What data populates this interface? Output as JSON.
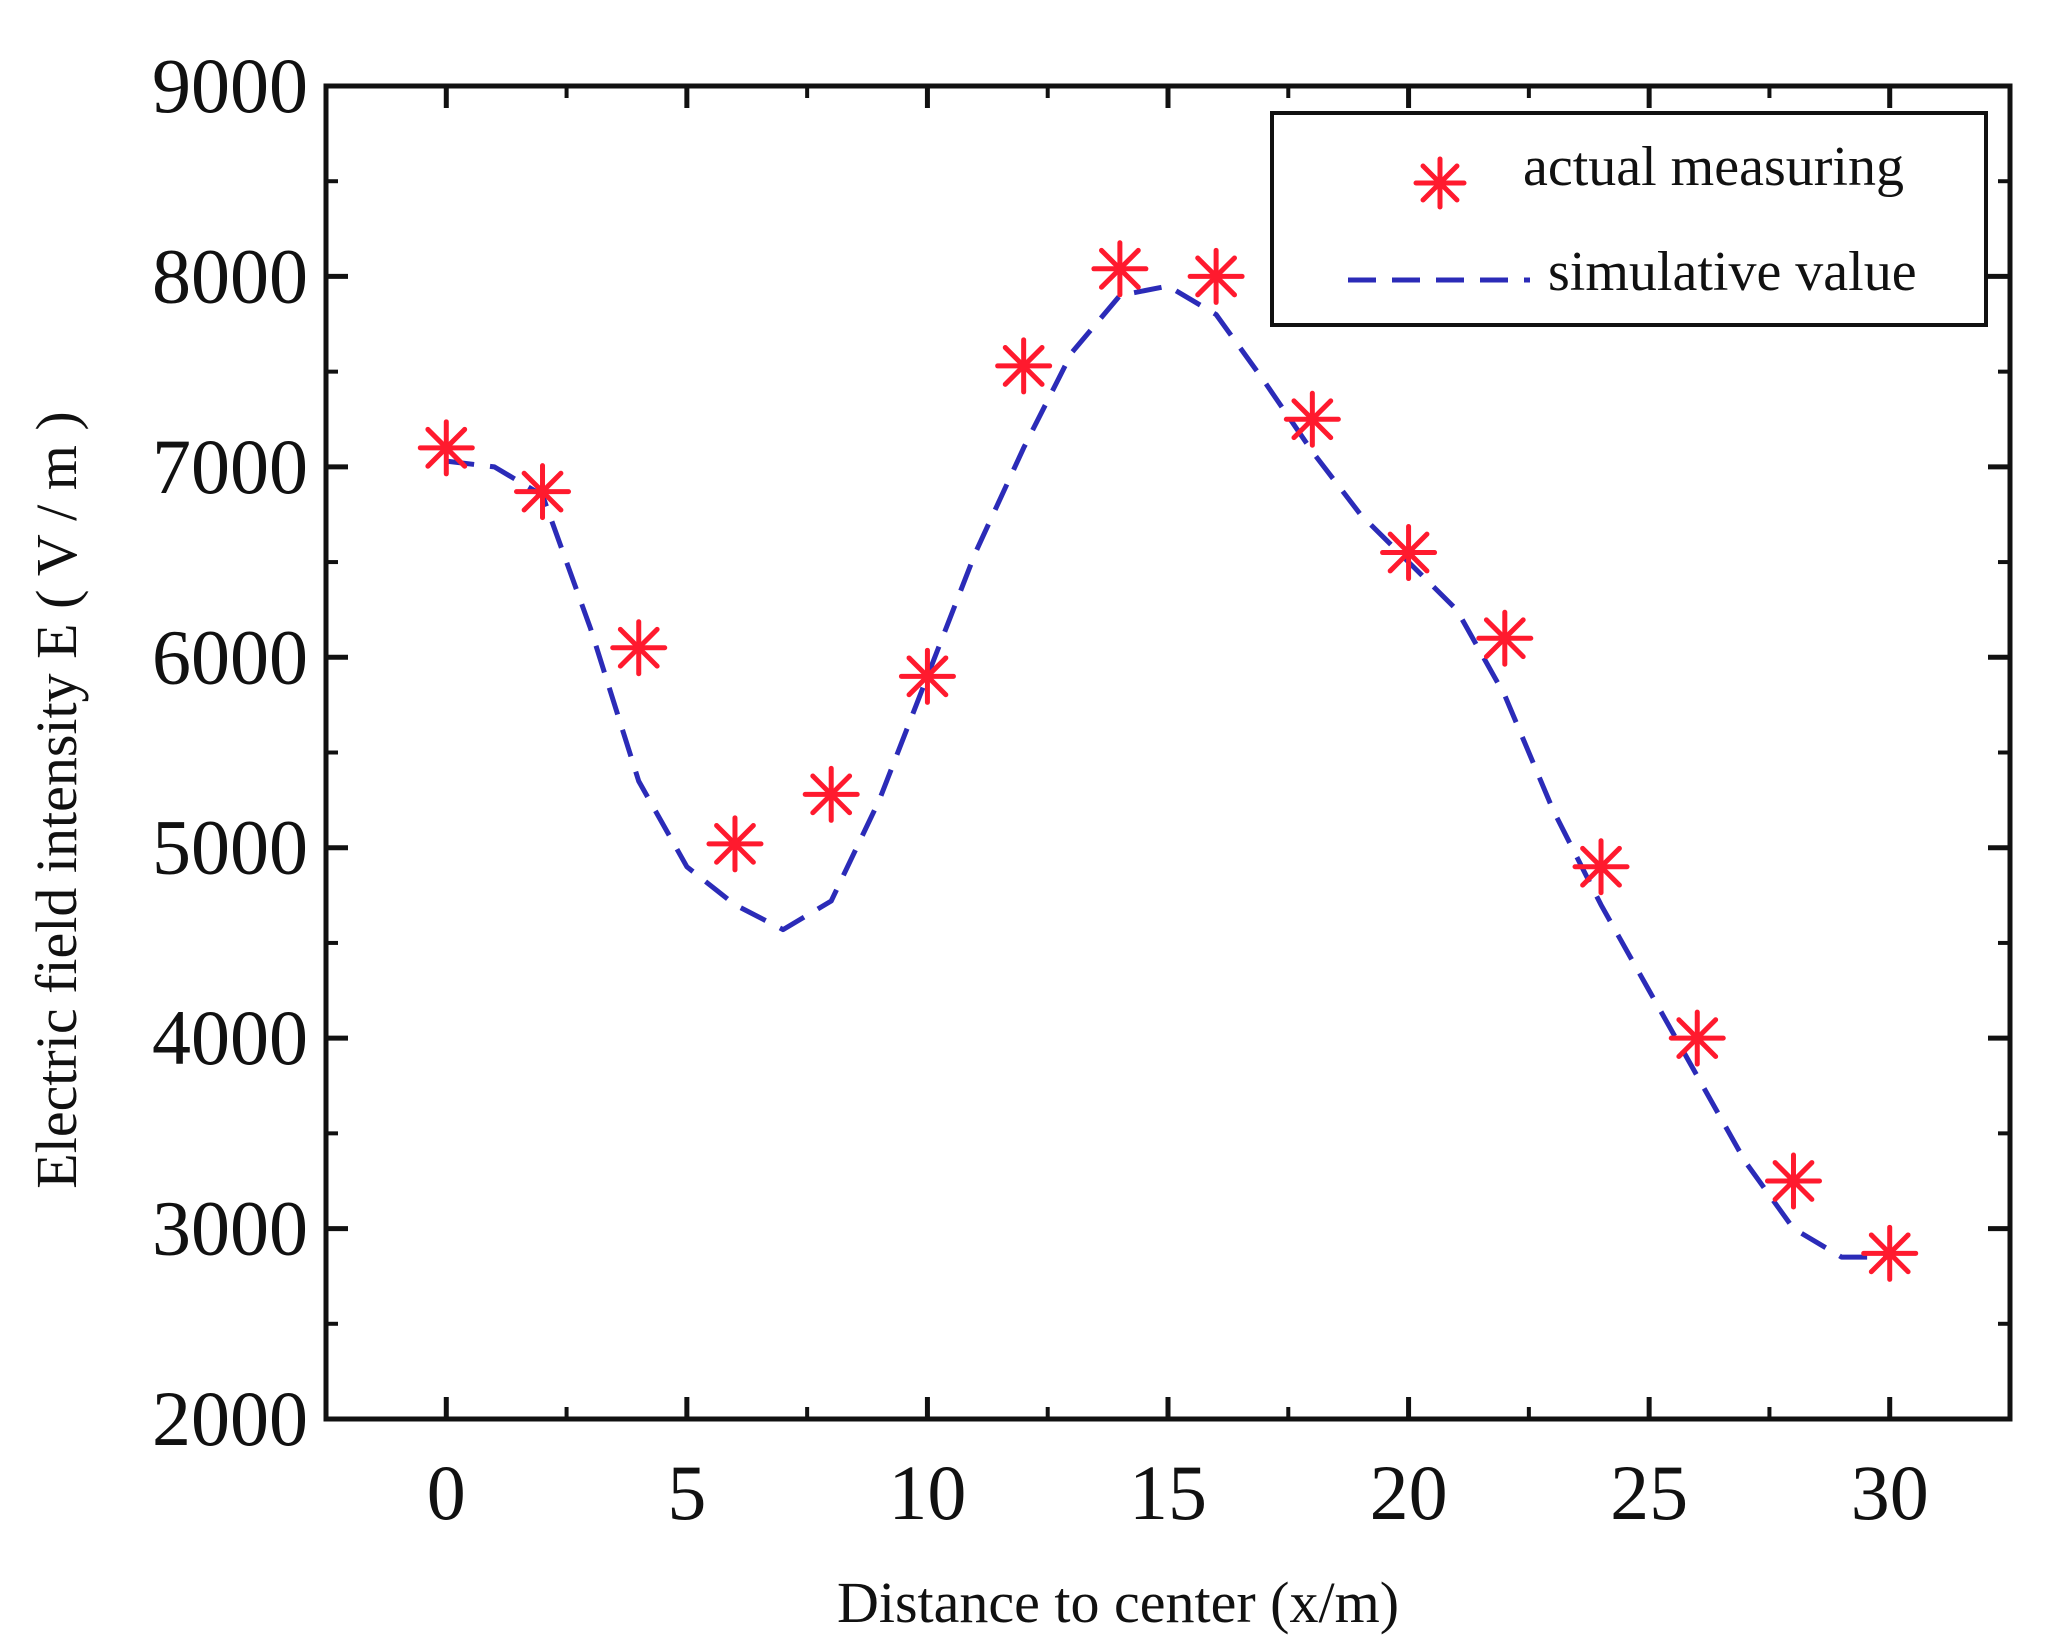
{
  "chart_data": {
    "type": "line",
    "title": "",
    "xlabel": "Distance to center (x/m)",
    "ylabel": "Electric field intensity E ( V / m )",
    "xlim": [
      -2.5,
      32.5
    ],
    "ylim": [
      2000,
      9000
    ],
    "xticks": [
      0,
      5,
      10,
      15,
      20,
      25,
      30
    ],
    "yticks": [
      2000,
      3000,
      4000,
      5000,
      6000,
      7000,
      8000,
      9000
    ],
    "grid": false,
    "legend_position": "top-right",
    "series": [
      {
        "name": "actual measuring",
        "style": "markers",
        "marker": "asterisk",
        "color": "#ff1a2e",
        "x": [
          0,
          2,
          4,
          6,
          8,
          10,
          12,
          14,
          16,
          18,
          20,
          22,
          24,
          26,
          28,
          30
        ],
        "values": [
          7100,
          6870,
          6050,
          5020,
          5280,
          5900,
          7530,
          8040,
          8000,
          7250,
          6550,
          6100,
          4900,
          4000,
          3250,
          2870
        ]
      },
      {
        "name": "simulative value",
        "style": "dashed-line",
        "color": "#2b2bb8",
        "x": [
          0,
          1,
          2,
          3,
          4,
          5,
          6,
          7,
          8,
          9,
          10,
          11,
          12,
          13,
          14,
          15,
          16,
          17,
          18,
          19,
          20,
          21,
          22,
          23,
          24,
          25,
          26,
          27,
          28,
          29,
          30
        ],
        "values": [
          7030,
          7000,
          6850,
          6150,
          5350,
          4900,
          4700,
          4570,
          4720,
          5250,
          5900,
          6550,
          7100,
          7600,
          7900,
          7950,
          7800,
          7450,
          7080,
          6750,
          6500,
          6250,
          5800,
          5200,
          4700,
          4250,
          3800,
          3350,
          3000,
          2850,
          2850
        ]
      }
    ]
  }
}
